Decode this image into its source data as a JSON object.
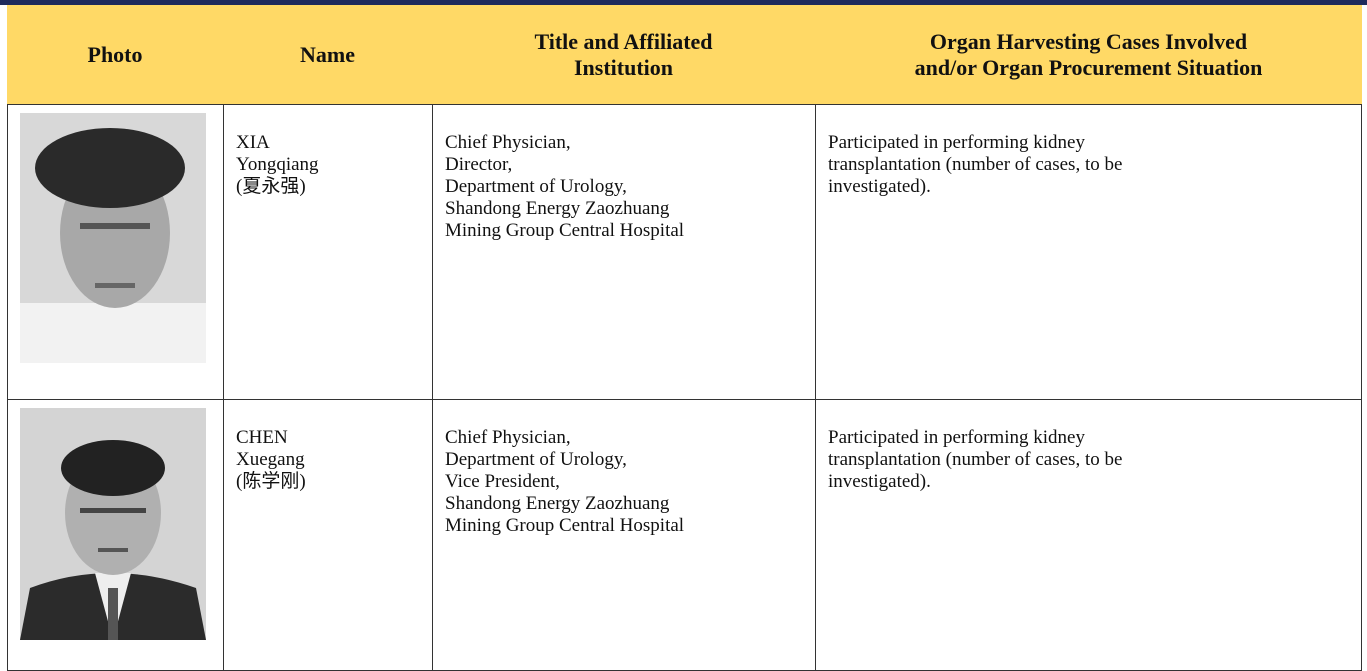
{
  "table": {
    "header": [
      [
        "Photo"
      ],
      [
        "Name"
      ],
      [
        "Title and Affiliated",
        "Institution"
      ],
      [
        "Organ Harvesting Cases Involved",
        "and/or Organ Procurement Situation"
      ]
    ],
    "rows": [
      {
        "name": [
          "XIA",
          "Yongqiang",
          "(夏永强)"
        ],
        "title": [
          "Chief Physician,",
          "Director,",
          "Department of Urology,",
          "Shandong Energy Zaozhuang",
          "Mining Group Central Hospital"
        ],
        "cases": [
          "Participated in performing kidney",
          "transplantation (number of cases, to be",
          "investigated)."
        ]
      },
      {
        "name": [
          "CHEN",
          "Xuegang",
          "(陈学刚)"
        ],
        "title": [
          "Chief Physician,",
          "Department of Urology,",
          "Vice President,",
          "Shandong Energy Zaozhuang",
          "Mining Group Central Hospital"
        ],
        "cases": [
          "Participated in performing kidney",
          "transplantation (number of cases, to be",
          "investigated)."
        ]
      }
    ]
  }
}
